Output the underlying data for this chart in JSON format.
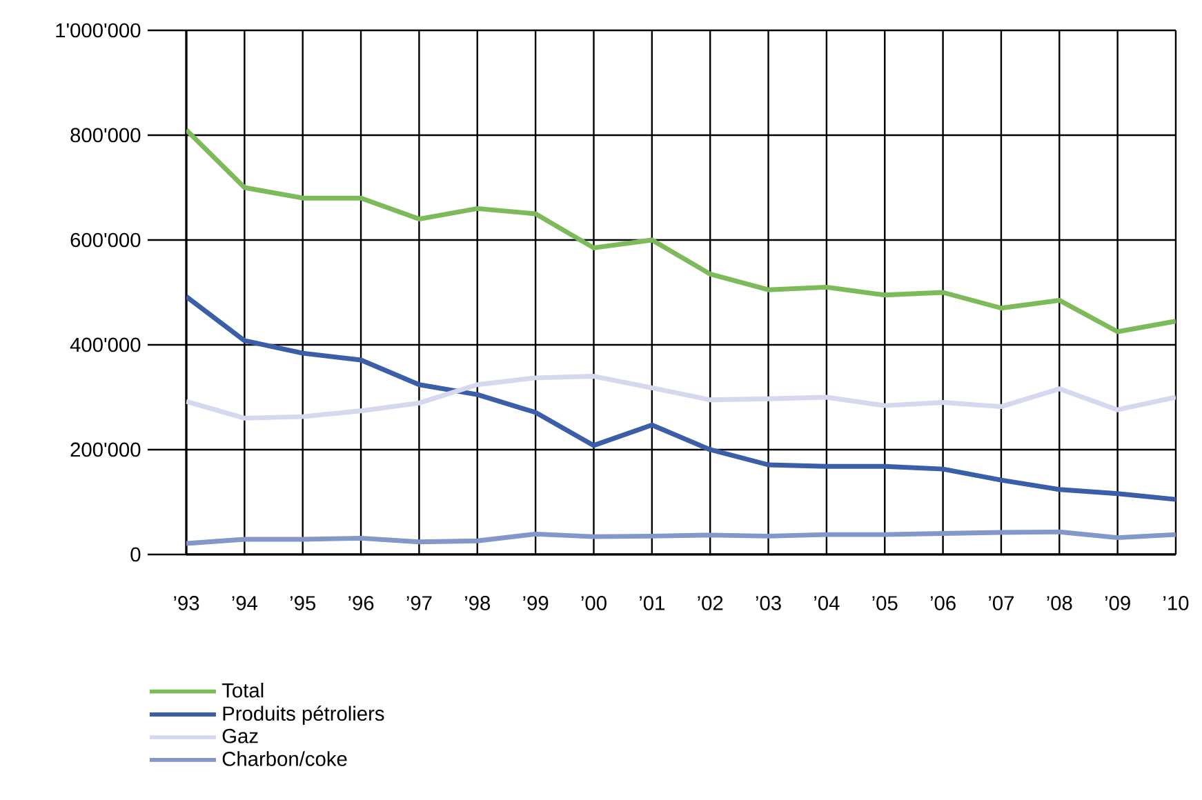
{
  "chart_data": {
    "type": "line",
    "categories": [
      "’93",
      "’94",
      "’95",
      "’96",
      "’97",
      "’98",
      "’99",
      "’00",
      "’01",
      "’02",
      "’03",
      "’04",
      "’05",
      "’06",
      "’07",
      "’08",
      "’09",
      "’10"
    ],
    "ylim": [
      0,
      1000000
    ],
    "yticks": [
      {
        "value": 0,
        "label": "0"
      },
      {
        "value": 200000,
        "label": "200'000"
      },
      {
        "value": 400000,
        "label": "400'000"
      },
      {
        "value": 600000,
        "label": "600'000"
      },
      {
        "value": 800000,
        "label": "800'000"
      },
      {
        "value": 1000000,
        "label": "1'000'000"
      }
    ],
    "grid": true,
    "legend": "bottom left",
    "marker": "none",
    "line_style": "solid",
    "series": [
      {
        "name": "Total",
        "color": "#7dbb5a",
        "values": [
          810000,
          700000,
          680000,
          680000,
          640000,
          660000,
          650000,
          585000,
          600000,
          535000,
          505000,
          510000,
          495000,
          500000,
          470000,
          485000,
          425000,
          445000
        ]
      },
      {
        "name": "Produits pétroliers",
        "color": "#3a5ea8",
        "values": [
          492000,
          408000,
          384000,
          371000,
          324000,
          305000,
          271000,
          208000,
          247000,
          200000,
          171000,
          168000,
          168000,
          163000,
          142000,
          124000,
          116000,
          105000
        ]
      },
      {
        "name": "Gaz",
        "color": "#d5d8ee",
        "values": [
          292000,
          260000,
          263000,
          274000,
          289000,
          324000,
          337000,
          340000,
          318000,
          295000,
          297000,
          300000,
          284000,
          290000,
          282000,
          316000,
          276000,
          300000
        ]
      },
      {
        "name": "Charbon/coke",
        "color": "#8497c9",
        "values": [
          21000,
          29000,
          29000,
          31000,
          24000,
          26000,
          39000,
          34000,
          35000,
          37000,
          35000,
          38000,
          38000,
          40000,
          42000,
          43000,
          32000,
          38000
        ]
      }
    ]
  }
}
